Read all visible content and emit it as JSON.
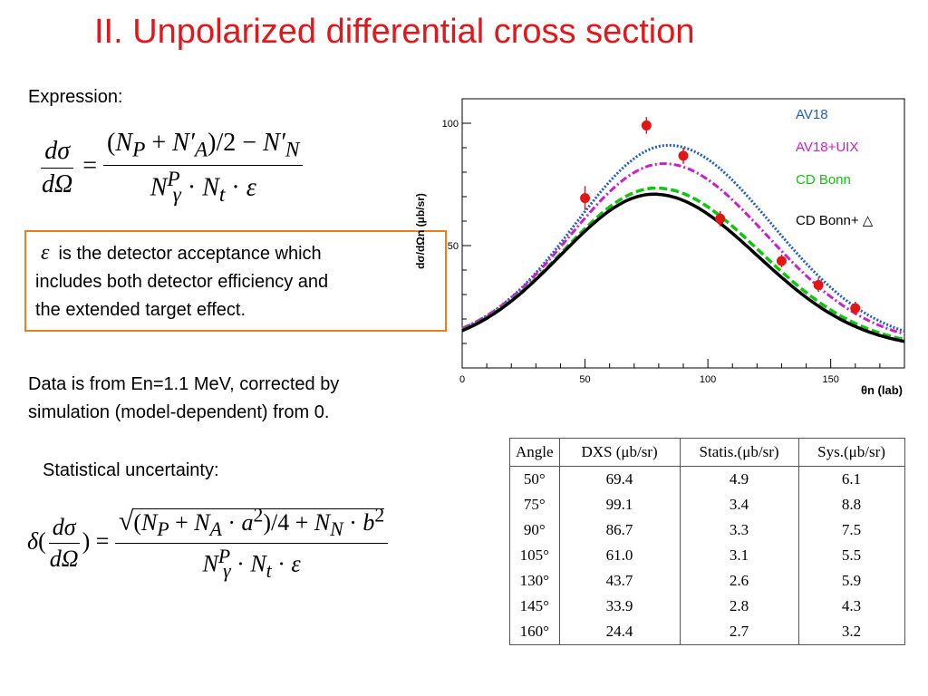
{
  "slide_title": "II. Unpolarized differential cross section",
  "expression_label": "Expression:",
  "acceptance_note": {
    "symbol": "ε",
    "text_line1": "is the detector acceptance which",
    "text_line2": "includes both detector efficiency and",
    "text_line3": "the extended target effect."
  },
  "data_note": {
    "line1": "Data is from En=1.1 MeV, corrected by",
    "line2": "simulation (model-dependent) from 0."
  },
  "stat_label": "Statistical uncertainty:",
  "chart_data": {
    "type": "scatter",
    "xlabel": "θn (lab)",
    "ylabel": "dσ/dΩn (μb/sr)",
    "xlim": [
      0,
      180
    ],
    "ylim": [
      0,
      110
    ],
    "x_ticks": [
      "0",
      "50",
      "100",
      "150"
    ],
    "y_ticks": [
      "50",
      "100"
    ],
    "points": [
      {
        "x": 50,
        "y": 69.4,
        "err": 4.9
      },
      {
        "x": 75,
        "y": 99.1,
        "err": 3.4
      },
      {
        "x": 90,
        "y": 86.7,
        "err": 3.3
      },
      {
        "x": 105,
        "y": 61.0,
        "err": 3.1
      },
      {
        "x": 130,
        "y": 43.7,
        "err": 2.6
      },
      {
        "x": 145,
        "y": 33.9,
        "err": 2.8
      },
      {
        "x": 160,
        "y": 24.4,
        "err": 2.7
      }
    ],
    "series": [
      {
        "name": "AV18",
        "color": "#1f5cc9",
        "style": "dotted",
        "peak": 91,
        "peak_x": 84,
        "base": 9
      },
      {
        "name": "AV18+UIX",
        "color": "#cc1fcc",
        "style": "dash-dot",
        "peak": 83.5,
        "peak_x": 82,
        "base": 9
      },
      {
        "name": "CD Bonn",
        "color": "#10c410",
        "style": "dashed",
        "peak": 73.5,
        "peak_x": 79,
        "base": 8
      },
      {
        "name": "CD Bonn+ △",
        "color": "#000000",
        "style": "solid",
        "peak": 71,
        "peak_x": 78,
        "base": 7.5
      }
    ]
  },
  "table": {
    "headers": [
      "Angle",
      "DXS (μb/sr)",
      "Statis.(μb/sr)",
      "Sys.(μb/sr)"
    ],
    "rows": [
      [
        "50°",
        "69.4",
        "4.9",
        "6.1"
      ],
      [
        "75°",
        "99.1",
        "3.4",
        "8.8"
      ],
      [
        "90°",
        "86.7",
        "3.3",
        "7.5"
      ],
      [
        "105°",
        "61.0",
        "3.1",
        "5.5"
      ],
      [
        "130°",
        "43.7",
        "2.6",
        "5.9"
      ],
      [
        "145°",
        "33.9",
        "2.8",
        "4.3"
      ],
      [
        "160°",
        "24.4",
        "2.7",
        "3.2"
      ]
    ]
  }
}
